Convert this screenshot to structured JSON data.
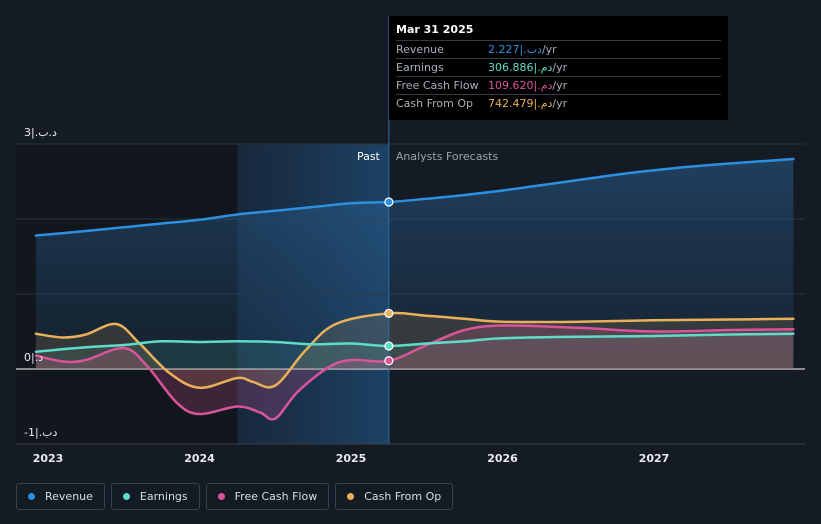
{
  "chart_data": {
    "type": "line",
    "title": "",
    "x": [
      2022.92,
      2023.0,
      2023.25,
      2023.5,
      2023.75,
      2024.0,
      2024.25,
      2024.5,
      2024.75,
      2025.0,
      2025.25,
      2025.5,
      2025.75,
      2026.0,
      2026.5,
      2027.0,
      2027.5,
      2027.92
    ],
    "ylim": [
      -1,
      3
    ],
    "yticks": [
      {
        "value": 3,
        "label": "3|.ﺩ.ب"
      },
      {
        "value": 0,
        "label": "0|.ﺩ"
      },
      {
        "value": -1,
        "label": "-1|.ﺩب"
      }
    ],
    "xticks": [
      {
        "value": 2023,
        "label": "2023"
      },
      {
        "value": 2024,
        "label": "2024"
      },
      {
        "value": 2025,
        "label": "2025"
      },
      {
        "value": 2026,
        "label": "2026"
      },
      {
        "value": 2027,
        "label": "2027"
      }
    ],
    "divider_x": 2025.25,
    "past_start_x": 2024.25,
    "past_label": "Past",
    "forecast_label": "Analysts Forecasts",
    "series": [
      {
        "name": "Revenue",
        "color": "#2d8fe0",
        "points": [
          [
            2022.92,
            1.78
          ],
          [
            2023.25,
            1.84
          ],
          [
            2023.5,
            1.89
          ],
          [
            2023.75,
            1.94
          ],
          [
            2024.0,
            1.99
          ],
          [
            2024.25,
            2.06
          ],
          [
            2024.5,
            2.11
          ],
          [
            2024.75,
            2.16
          ],
          [
            2025.0,
            2.21
          ],
          [
            2025.25,
            2.227
          ],
          [
            2025.5,
            2.27
          ],
          [
            2025.75,
            2.32
          ],
          [
            2026.0,
            2.38
          ],
          [
            2026.25,
            2.45
          ],
          [
            2026.5,
            2.52
          ],
          [
            2026.75,
            2.59
          ],
          [
            2027.0,
            2.65
          ],
          [
            2027.25,
            2.7
          ],
          [
            2027.5,
            2.74
          ],
          [
            2027.92,
            2.8
          ]
        ]
      },
      {
        "name": "Earnings",
        "color": "#5fdcc8",
        "points": [
          [
            2022.92,
            0.23
          ],
          [
            2023.25,
            0.29
          ],
          [
            2023.5,
            0.32
          ],
          [
            2023.75,
            0.37
          ],
          [
            2024.0,
            0.36
          ],
          [
            2024.25,
            0.37
          ],
          [
            2024.5,
            0.36
          ],
          [
            2024.75,
            0.33
          ],
          [
            2025.0,
            0.34
          ],
          [
            2025.25,
            0.307
          ],
          [
            2025.5,
            0.34
          ],
          [
            2025.75,
            0.37
          ],
          [
            2026.0,
            0.41
          ],
          [
            2026.5,
            0.43
          ],
          [
            2027.0,
            0.44
          ],
          [
            2027.5,
            0.46
          ],
          [
            2027.92,
            0.47
          ]
        ]
      },
      {
        "name": "Free Cash Flow",
        "color": "#d9559a",
        "points": [
          [
            2022.92,
            0.18
          ],
          [
            2023.1,
            0.1
          ],
          [
            2023.25,
            0.12
          ],
          [
            2023.5,
            0.28
          ],
          [
            2023.65,
            0.05
          ],
          [
            2023.85,
            -0.45
          ],
          [
            2024.0,
            -0.6
          ],
          [
            2024.25,
            -0.5
          ],
          [
            2024.4,
            -0.58
          ],
          [
            2024.5,
            -0.66
          ],
          [
            2024.65,
            -0.3
          ],
          [
            2024.85,
            0.02
          ],
          [
            2025.0,
            0.12
          ],
          [
            2025.25,
            0.11
          ],
          [
            2025.5,
            0.32
          ],
          [
            2025.75,
            0.52
          ],
          [
            2026.0,
            0.58
          ],
          [
            2026.5,
            0.55
          ],
          [
            2027.0,
            0.5
          ],
          [
            2027.5,
            0.52
          ],
          [
            2027.92,
            0.53
          ]
        ]
      },
      {
        "name": "Cash From Op",
        "color": "#e9b05a",
        "points": [
          [
            2022.92,
            0.47
          ],
          [
            2023.1,
            0.42
          ],
          [
            2023.25,
            0.46
          ],
          [
            2023.45,
            0.6
          ],
          [
            2023.6,
            0.35
          ],
          [
            2023.8,
            -0.05
          ],
          [
            2024.0,
            -0.25
          ],
          [
            2024.25,
            -0.12
          ],
          [
            2024.35,
            -0.17
          ],
          [
            2024.5,
            -0.22
          ],
          [
            2024.7,
            0.25
          ],
          [
            2024.9,
            0.6
          ],
          [
            2025.25,
            0.742
          ],
          [
            2025.5,
            0.71
          ],
          [
            2025.75,
            0.67
          ],
          [
            2026.0,
            0.63
          ],
          [
            2026.5,
            0.63
          ],
          [
            2027.0,
            0.65
          ],
          [
            2027.5,
            0.66
          ],
          [
            2027.92,
            0.67
          ]
        ]
      }
    ],
    "highlight": {
      "x": 2025.25,
      "values": [
        2.227,
        0.307,
        0.11,
        0.742
      ]
    }
  },
  "tooltip": {
    "date": "Mar 31 2025",
    "rows": [
      {
        "label": "Revenue",
        "value": "2.227|.ﺩب",
        "unit": " /yr",
        "color": "#2d8fe0"
      },
      {
        "label": "Earnings",
        "value": "306.886|.ﺩم",
        "unit": " /yr",
        "color": "#5fdcc8"
      },
      {
        "label": "Free Cash Flow",
        "value": "109.620|.ﺩم",
        "unit": " /yr",
        "color": "#d9559a"
      },
      {
        "label": "Cash From Op",
        "value": "742.479|.ﺩم",
        "unit": " /yr",
        "color": "#e9b05a"
      }
    ]
  },
  "legend": [
    {
      "label": "Revenue",
      "color": "#2d8fe0"
    },
    {
      "label": "Earnings",
      "color": "#5fdcc8"
    },
    {
      "label": "Free Cash Flow",
      "color": "#d9559a"
    },
    {
      "label": "Cash From Op",
      "color": "#e9b05a"
    }
  ]
}
